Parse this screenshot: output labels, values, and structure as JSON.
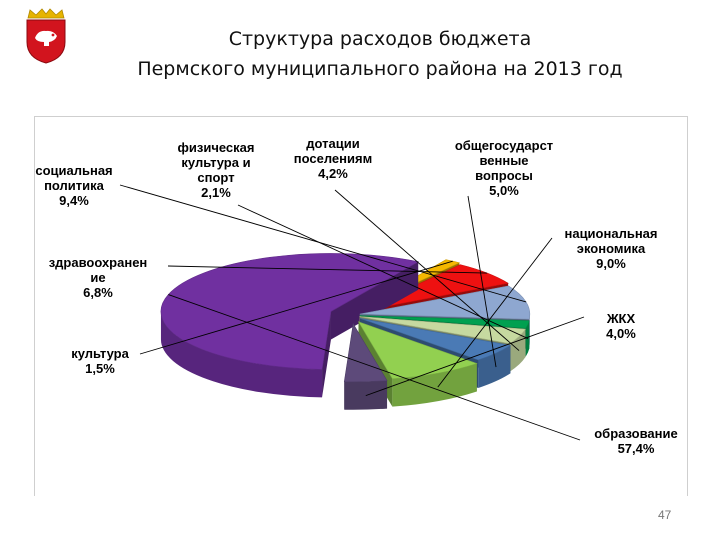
{
  "header": {
    "title_line1": "Структура расходов бюджета",
    "title_line2": "Пермского муниципального района на 2013 год"
  },
  "emblem": {
    "icon": "coat-of-arms-icon",
    "colors": {
      "shield": "#d2141e",
      "gold": "#e6b400"
    }
  },
  "page_number": "47",
  "chart_data": {
    "type": "pie",
    "style": "3d-exploded",
    "title": "",
    "slices": [
      {
        "key": "education",
        "label_lines": [
          "образование",
          "57,4%"
        ],
        "value": 57.4,
        "color": "#7030a0"
      },
      {
        "key": "culture",
        "label_lines": [
          "культура",
          "1,5%"
        ],
        "value": 1.5,
        "color": "#f5b800"
      },
      {
        "key": "healthcare",
        "label_lines": [
          "здравоохранен",
          "ие",
          "6,8%"
        ],
        "value": 6.8,
        "color": "#ee1111"
      },
      {
        "key": "social-policy",
        "label_lines": [
          "социальная",
          "политика",
          "9,4%"
        ],
        "value": 9.4,
        "color": "#8ea7d0"
      },
      {
        "key": "physical-culture",
        "label_lines": [
          "физическая",
          "культура и",
          "спорт",
          "2,1%"
        ],
        "value": 2.1,
        "color": "#00a050"
      },
      {
        "key": "subsidies",
        "label_lines": [
          "дотации",
          "поселениям",
          "4,2%"
        ],
        "value": 4.2,
        "color": "#c6d9a0"
      },
      {
        "key": "general-state",
        "label_lines": [
          "общегосударст",
          "венные",
          "вопросы",
          "5,0%"
        ],
        "value": 5.0,
        "color": "#4a7ab5"
      },
      {
        "key": "national-economy",
        "label_lines": [
          "национальная",
          "экономика",
          "9,0%"
        ],
        "value": 9.0,
        "color": "#92d050"
      },
      {
        "key": "housing",
        "label_lines": [
          "ЖКХ",
          "4,0%"
        ],
        "value": 4.0,
        "color": "#5d4a7a"
      }
    ]
  }
}
